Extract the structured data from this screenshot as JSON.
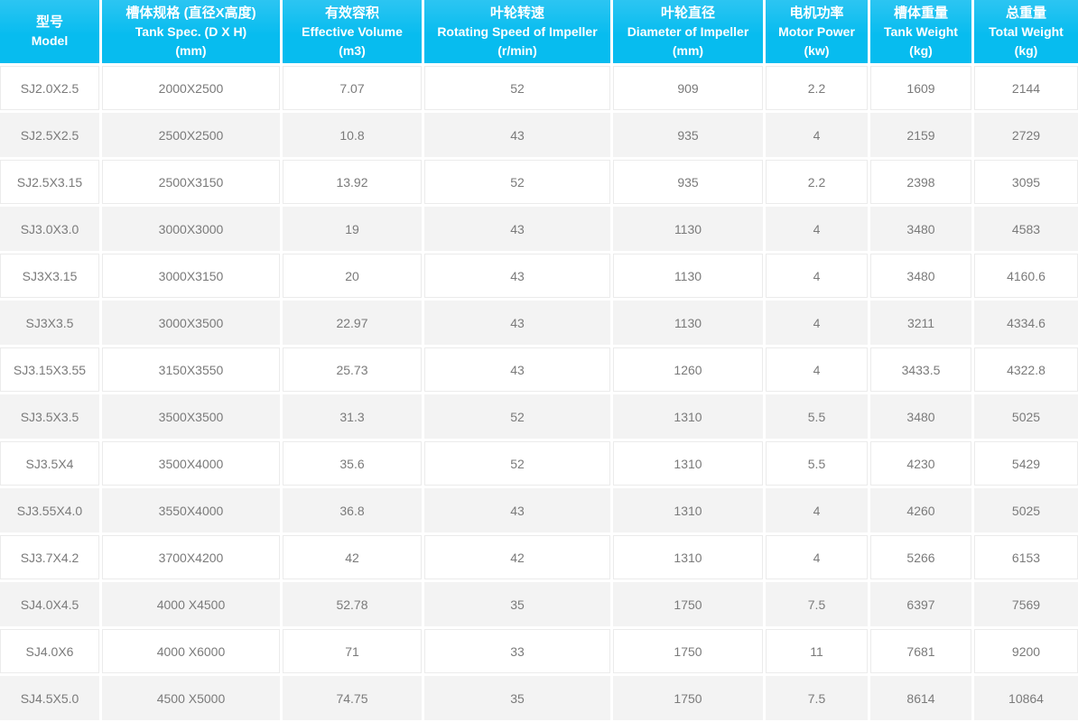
{
  "colors": {
    "header_bg": "#07bcef",
    "header_bg_top": "#2cc5f2",
    "header_text": "#ffffff",
    "cell_text": "#7a7a7a",
    "row_alt_bg": "#f3f3f3",
    "cell_border": "#ebebeb"
  },
  "chart_data": {
    "type": "table",
    "columns": [
      {
        "zh": "型号",
        "en": "Model",
        "unit": ""
      },
      {
        "zh": "槽体规格 (直径X高度)",
        "en": "Tank Spec. (D X H)",
        "unit": "(mm)"
      },
      {
        "zh": "有效容积",
        "en": "Effective Volume",
        "unit": "(m3)"
      },
      {
        "zh": "叶轮转速",
        "en": "Rotating Speed of Impeller",
        "unit": "(r/min)"
      },
      {
        "zh": "叶轮直径",
        "en": "Diameter of Impeller",
        "unit": "(mm)"
      },
      {
        "zh": "电机功率",
        "en": "Motor Power",
        "unit": "(kw)"
      },
      {
        "zh": "槽体重量",
        "en": "Tank Weight",
        "unit": "(kg)"
      },
      {
        "zh": "总重量",
        "en": "Total Weight",
        "unit": "(kg)"
      }
    ],
    "rows": [
      [
        "SJ2.0X2.5",
        "2000X2500",
        "7.07",
        "52",
        "909",
        "2.2",
        "1609",
        "2144"
      ],
      [
        "SJ2.5X2.5",
        "2500X2500",
        "10.8",
        "43",
        "935",
        "4",
        "2159",
        "2729"
      ],
      [
        "SJ2.5X3.15",
        "2500X3150",
        "13.92",
        "52",
        "935",
        "2.2",
        "2398",
        "3095"
      ],
      [
        "SJ3.0X3.0",
        "3000X3000",
        "19",
        "43",
        "1130",
        "4",
        "3480",
        "4583"
      ],
      [
        "SJ3X3.15",
        "3000X3150",
        "20",
        "43",
        "1130",
        "4",
        "3480",
        "4160.6"
      ],
      [
        "SJ3X3.5",
        "3000X3500",
        "22.97",
        "43",
        "1130",
        "4",
        "3211",
        "4334.6"
      ],
      [
        "SJ3.15X3.55",
        "3150X3550",
        "25.73",
        "43",
        "1260",
        "4",
        "3433.5",
        "4322.8"
      ],
      [
        "SJ3.5X3.5",
        "3500X3500",
        "31.3",
        "52",
        "1310",
        "5.5",
        "3480",
        "5025"
      ],
      [
        "SJ3.5X4",
        "3500X4000",
        "35.6",
        "52",
        "1310",
        "5.5",
        "4230",
        "5429"
      ],
      [
        "SJ3.55X4.0",
        "3550X4000",
        "36.8",
        "43",
        "1310",
        "4",
        "4260",
        "5025"
      ],
      [
        "SJ3.7X4.2",
        "3700X4200",
        "42",
        "42",
        "1310",
        "4",
        "5266",
        "6153"
      ],
      [
        "SJ4.0X4.5",
        "4000 X4500",
        "52.78",
        "35",
        "1750",
        "7.5",
        "6397",
        "7569"
      ],
      [
        "SJ4.0X6",
        "4000 X6000",
        "71",
        "33",
        "1750",
        "11",
        "7681",
        "9200"
      ],
      [
        "SJ4.5X5.0",
        "4500 X5000",
        "74.75",
        "35",
        "1750",
        "7.5",
        "8614",
        "10864"
      ]
    ]
  }
}
